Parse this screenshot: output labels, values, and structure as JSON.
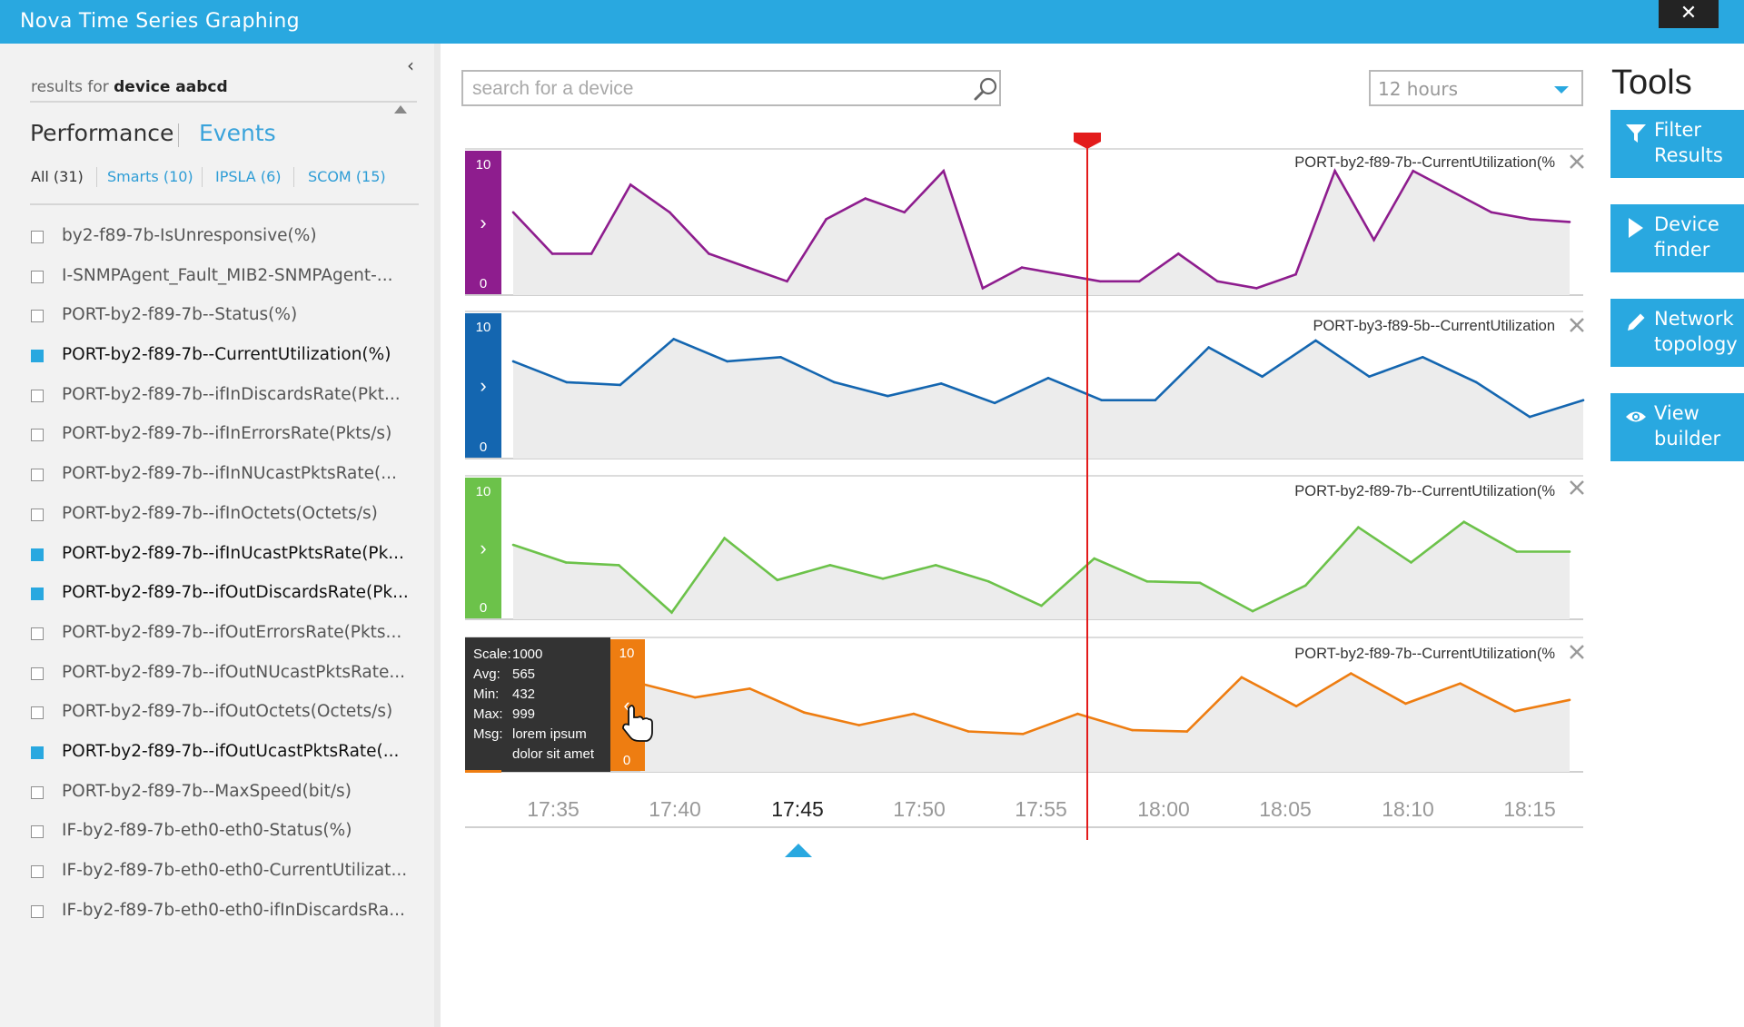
{
  "app": {
    "title": "Nova Time Series Graphing",
    "close_label": "✕"
  },
  "sidebar": {
    "collapse_label": "‹",
    "results_prefix": "results for",
    "results_device": "device aabcd",
    "tabs": [
      {
        "label": "Performance",
        "active": true
      },
      {
        "label": "Events",
        "active": false
      }
    ],
    "filters": [
      {
        "label": "All (31)",
        "active": true
      },
      {
        "label": "Smarts (10)",
        "active": false
      },
      {
        "label": "IPSLA (6)",
        "active": false
      },
      {
        "label": "SCOM (15)",
        "active": false
      }
    ],
    "metrics": [
      {
        "label": "by2-f89-7b-IsUnresponsive(%)",
        "checked": false
      },
      {
        "label": "I-SNMPAgent_Fault_MIB2-SNMPAgent-...",
        "checked": false
      },
      {
        "label": "PORT-by2-f89-7b--Status(%)",
        "checked": false
      },
      {
        "label": "PORT-by2-f89-7b--CurrentUtilization(%)",
        "checked": true
      },
      {
        "label": "PORT-by2-f89-7b--ifInDiscardsRate(Pkt...",
        "checked": false
      },
      {
        "label": "PORT-by2-f89-7b--ifInErrorsRate(Pkts/s)",
        "checked": false
      },
      {
        "label": "PORT-by2-f89-7b--ifInNUcastPktsRate(...",
        "checked": false
      },
      {
        "label": "PORT-by2-f89-7b--ifInOctets(Octets/s)",
        "checked": false
      },
      {
        "label": "PORT-by2-f89-7b--ifInUcastPktsRate(Pk...",
        "checked": true
      },
      {
        "label": "PORT-by2-f89-7b--ifOutDiscardsRate(Pk...",
        "checked": true
      },
      {
        "label": "PORT-by2-f89-7b--ifOutErrorsRate(Pkts...",
        "checked": false
      },
      {
        "label": "PORT-by2-f89-7b--ifOutNUcastPktsRate...",
        "checked": false
      },
      {
        "label": "PORT-by2-f89-7b--ifOutOctets(Octets/s)",
        "checked": false
      },
      {
        "label": "PORT-by2-f89-7b--ifOutUcastPktsRate(...",
        "checked": true
      },
      {
        "label": "PORT-by2-f89-7b--MaxSpeed(bit/s)",
        "checked": false
      },
      {
        "label": "IF-by2-f89-7b-eth0-eth0-Status(%)",
        "checked": false
      },
      {
        "label": "IF-by2-f89-7b-eth0-eth0-CurrentUtilizat...",
        "checked": false
      },
      {
        "label": "IF-by2-f89-7b-eth0-eth0-ifInDiscardsRa...",
        "checked": false
      }
    ]
  },
  "search": {
    "placeholder": "search for a device",
    "value": "",
    "icon": "search-icon"
  },
  "time_range": {
    "value": "12 hours"
  },
  "tools": {
    "title": "Tools",
    "buttons": [
      {
        "label": "Filter\nResults",
        "icon": "filter-icon"
      },
      {
        "label": "Device\nfinder",
        "icon": "play-icon"
      },
      {
        "label": "Network\ntopology",
        "icon": "pencil-icon"
      },
      {
        "label": "View\nbuilder",
        "icon": "eye-icon"
      }
    ]
  },
  "tooltip": {
    "rows": [
      {
        "key": "Scale:",
        "value": "1000"
      },
      {
        "key": "Avg:",
        "value": "565"
      },
      {
        "key": "Min:",
        "value": "432"
      },
      {
        "key": "Max:",
        "value": "999"
      },
      {
        "key": "Msg:",
        "value": "lorem ipsum\ndolor sit amet"
      }
    ]
  },
  "chart_data": {
    "type": "line",
    "x_ticks": [
      "17:35",
      "17:40",
      "17:45",
      "17:50",
      "17:55",
      "18:00",
      "18:05",
      "18:10",
      "18:15"
    ],
    "selected_tick": "17:45",
    "series": [
      {
        "name": "PORT-by2-f89-7b--CurrentUtilization(%",
        "color": "#8e1d8e",
        "ymin": "0",
        "ymax": "10",
        "toggle": "›",
        "values": [
          [
            0,
            6
          ],
          [
            1,
            3
          ],
          [
            2,
            3
          ],
          [
            3,
            8
          ],
          [
            4,
            6
          ],
          [
            5,
            3
          ],
          [
            6,
            2
          ],
          [
            7,
            1
          ],
          [
            8,
            5.5
          ],
          [
            9,
            7
          ],
          [
            10,
            6
          ],
          [
            11,
            9
          ],
          [
            12,
            0.5
          ],
          [
            13,
            2
          ],
          [
            14,
            1.5
          ],
          [
            15,
            1
          ],
          [
            16,
            1
          ],
          [
            17,
            3
          ],
          [
            18,
            1
          ],
          [
            19,
            0.5
          ],
          [
            20,
            1.5
          ],
          [
            21,
            9
          ],
          [
            22,
            4
          ],
          [
            23,
            9
          ],
          [
            24,
            7.5
          ],
          [
            25,
            6
          ],
          [
            26,
            5.5
          ],
          [
            27,
            5.3
          ]
        ]
      },
      {
        "name": "PORT-by3-f89-5b--CurrentUtilization",
        "color": "#1466b0",
        "ymin": "0",
        "ymax": "10",
        "toggle": "›",
        "values": [
          [
            0,
            7
          ],
          [
            1,
            5.5
          ],
          [
            2,
            5.3
          ],
          [
            3,
            8.6
          ],
          [
            4,
            7
          ],
          [
            5,
            7.3
          ],
          [
            6,
            5.5
          ],
          [
            7,
            4.5
          ],
          [
            8,
            5.4
          ],
          [
            9,
            4
          ],
          [
            10,
            5.8
          ],
          [
            11,
            4.2
          ],
          [
            12,
            4.2
          ],
          [
            13,
            8
          ],
          [
            14,
            5.9
          ],
          [
            15,
            8.5
          ],
          [
            16,
            5.9
          ],
          [
            17,
            7.3
          ],
          [
            18,
            5.5
          ],
          [
            19,
            3
          ],
          [
            20,
            4.2
          ]
        ]
      },
      {
        "name": "PORT-by2-f89-7b--CurrentUtilization(%",
        "color": "#6cc24a",
        "ymin": "0",
        "ymax": "10",
        "toggle": "›",
        "values": [
          [
            0,
            5.5
          ],
          [
            1,
            4.2
          ],
          [
            2,
            4
          ],
          [
            3,
            0.5
          ],
          [
            4,
            6
          ],
          [
            5,
            2.9
          ],
          [
            6,
            4
          ],
          [
            7,
            3
          ],
          [
            8,
            4
          ],
          [
            9,
            2.8
          ],
          [
            10,
            1
          ],
          [
            11,
            4.5
          ],
          [
            12,
            2.8
          ],
          [
            13,
            2.7
          ],
          [
            14,
            0.6
          ],
          [
            15,
            2.5
          ],
          [
            16,
            6.8
          ],
          [
            17,
            4.2
          ],
          [
            18,
            7.2
          ],
          [
            19,
            5
          ],
          [
            20,
            5
          ]
        ]
      },
      {
        "name": "PORT-by2-f89-7b--CurrentUtilization(%",
        "color": "#ee7d11",
        "ymin": "0",
        "ymax": "10",
        "toggle": "‹",
        "values": [
          [
            0,
            7
          ],
          [
            1,
            5.9
          ],
          [
            2,
            6.6
          ],
          [
            3,
            4.7
          ],
          [
            4,
            3.7
          ],
          [
            5,
            4.6
          ],
          [
            6,
            3.2
          ],
          [
            7,
            3
          ],
          [
            8,
            4.6
          ],
          [
            9,
            3.3
          ],
          [
            10,
            3.2
          ],
          [
            11,
            7.5
          ],
          [
            12,
            5.2
          ],
          [
            13,
            7.8
          ],
          [
            14,
            5.4
          ],
          [
            15,
            7
          ],
          [
            16,
            4.8
          ],
          [
            17,
            5.7
          ]
        ]
      }
    ]
  }
}
